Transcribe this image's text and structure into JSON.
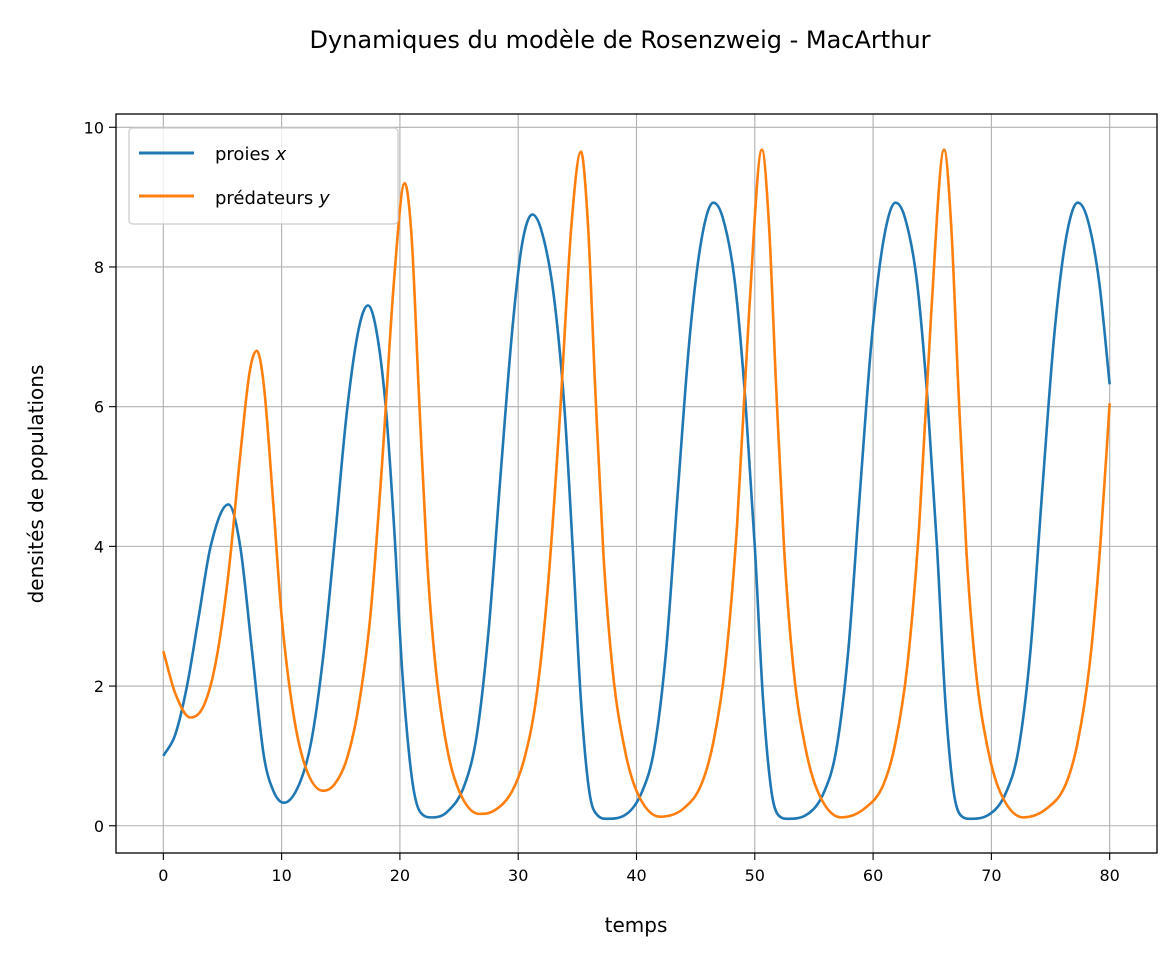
{
  "chart_data": {
    "type": "line",
    "title": "Dynamiques du modèle de Rosenzweig - MacArthur",
    "xlabel": "temps",
    "ylabel": "densités de populations",
    "xlim": [
      -4,
      84
    ],
    "ylim": [
      -0.39,
      10.19
    ],
    "xticks": [
      0,
      10,
      20,
      30,
      40,
      50,
      60,
      70,
      80
    ],
    "yticks": [
      0,
      2,
      4,
      6,
      8,
      10
    ],
    "grid": true,
    "legend_position": "top-left",
    "series": [
      {
        "name": "proies",
        "name_var": "x",
        "color": "#1f77b4",
        "points": [
          [
            0,
            1.0
          ],
          [
            1,
            1.3
          ],
          [
            2,
            2.0
          ],
          [
            3,
            3.0
          ],
          [
            4,
            4.0
          ],
          [
            5.5,
            4.6
          ],
          [
            6.5,
            4.0
          ],
          [
            7.5,
            2.5
          ],
          [
            8.5,
            1.0
          ],
          [
            9.3,
            0.5
          ],
          [
            10.2,
            0.33
          ],
          [
            11.5,
            0.6
          ],
          [
            12.5,
            1.2
          ],
          [
            13.5,
            2.4
          ],
          [
            14.5,
            4.1
          ],
          [
            15.5,
            5.9
          ],
          [
            16.5,
            7.1
          ],
          [
            17.3,
            7.45
          ],
          [
            18,
            7.1
          ],
          [
            18.8,
            6.0
          ],
          [
            19.5,
            4.3
          ],
          [
            20.2,
            2.2
          ],
          [
            21,
            0.7
          ],
          [
            21.7,
            0.2
          ],
          [
            22.7,
            0.12
          ],
          [
            24,
            0.2
          ],
          [
            25.5,
            0.6
          ],
          [
            26.5,
            1.3
          ],
          [
            27.5,
            2.8
          ],
          [
            28.5,
            5.0
          ],
          [
            29.5,
            7.1
          ],
          [
            30.3,
            8.3
          ],
          [
            31.2,
            8.75
          ],
          [
            32,
            8.5
          ],
          [
            33,
            7.6
          ],
          [
            33.9,
            6.0
          ],
          [
            34.6,
            4.0
          ],
          [
            35.3,
            1.8
          ],
          [
            36,
            0.5
          ],
          [
            36.7,
            0.15
          ],
          [
            37.5,
            0.1
          ],
          [
            39,
            0.15
          ],
          [
            40.5,
            0.5
          ],
          [
            41.5,
            1.1
          ],
          [
            42.5,
            2.5
          ],
          [
            43.5,
            4.8
          ],
          [
            44.5,
            7.0
          ],
          [
            45.5,
            8.4
          ],
          [
            46.5,
            8.92
          ],
          [
            47.3,
            8.7
          ],
          [
            48.3,
            7.8
          ],
          [
            49.2,
            6.1
          ],
          [
            50,
            4.0
          ],
          [
            50.7,
            1.8
          ],
          [
            51.4,
            0.5
          ],
          [
            52,
            0.15
          ],
          [
            52.8,
            0.1
          ],
          [
            54.3,
            0.15
          ],
          [
            55.9,
            0.5
          ],
          [
            56.9,
            1.1
          ],
          [
            57.9,
            2.5
          ],
          [
            58.9,
            4.8
          ],
          [
            59.9,
            7.0
          ],
          [
            60.9,
            8.4
          ],
          [
            61.9,
            8.92
          ],
          [
            62.7,
            8.7
          ],
          [
            63.7,
            7.8
          ],
          [
            64.6,
            6.1
          ],
          [
            65.4,
            4.0
          ],
          [
            66.1,
            1.8
          ],
          [
            66.8,
            0.5
          ],
          [
            67.4,
            0.15
          ],
          [
            68.2,
            0.1
          ],
          [
            69.7,
            0.15
          ],
          [
            71.3,
            0.5
          ],
          [
            72.3,
            1.1
          ],
          [
            73.3,
            2.5
          ],
          [
            74.3,
            4.8
          ],
          [
            75.3,
            7.0
          ],
          [
            76.3,
            8.4
          ],
          [
            77.3,
            8.92
          ],
          [
            78.1,
            8.7
          ],
          [
            79.1,
            7.8
          ],
          [
            80,
            6.32
          ]
        ]
      },
      {
        "name": "prédateurs",
        "name_var": "y",
        "color": "#ff7f0e",
        "points": [
          [
            0,
            2.5
          ],
          [
            1,
            1.9
          ],
          [
            2.3,
            1.55
          ],
          [
            3.5,
            1.75
          ],
          [
            4.5,
            2.4
          ],
          [
            5.5,
            3.6
          ],
          [
            6.5,
            5.3
          ],
          [
            7.3,
            6.5
          ],
          [
            7.9,
            6.8
          ],
          [
            8.5,
            6.3
          ],
          [
            9.3,
            4.6
          ],
          [
            10,
            3.0
          ],
          [
            11,
            1.6
          ],
          [
            12,
            0.85
          ],
          [
            13.5,
            0.5
          ],
          [
            14.5,
            0.6
          ],
          [
            15.5,
            0.95
          ],
          [
            16.5,
            1.7
          ],
          [
            17.5,
            3.0
          ],
          [
            18.5,
            5.2
          ],
          [
            19.5,
            7.8
          ],
          [
            20.4,
            9.2
          ],
          [
            21,
            8.4
          ],
          [
            21.6,
            6.2
          ],
          [
            22.3,
            3.8
          ],
          [
            23,
            2.3
          ],
          [
            24,
            1.1
          ],
          [
            25,
            0.5
          ],
          [
            26.7,
            0.17
          ],
          [
            28,
            0.22
          ],
          [
            29.5,
            0.5
          ],
          [
            30.5,
            0.95
          ],
          [
            31.5,
            1.8
          ],
          [
            32.5,
            3.4
          ],
          [
            33.5,
            5.8
          ],
          [
            34.5,
            8.6
          ],
          [
            35.3,
            9.65
          ],
          [
            35.9,
            8.6
          ],
          [
            36.5,
            6.3
          ],
          [
            37.2,
            3.9
          ],
          [
            38,
            2.2
          ],
          [
            39,
            1.1
          ],
          [
            40,
            0.5
          ],
          [
            42,
            0.13
          ],
          [
            44,
            0.25
          ],
          [
            45.5,
            0.6
          ],
          [
            46.5,
            1.2
          ],
          [
            47.5,
            2.3
          ],
          [
            48.5,
            4.3
          ],
          [
            49.5,
            7.3
          ],
          [
            50.6,
            9.68
          ],
          [
            51.2,
            8.6
          ],
          [
            51.8,
            6.3
          ],
          [
            52.5,
            3.9
          ],
          [
            53.3,
            2.2
          ],
          [
            54.3,
            1.1
          ],
          [
            55.3,
            0.5
          ],
          [
            57.3,
            0.12
          ],
          [
            59.3,
            0.25
          ],
          [
            60.9,
            0.6
          ],
          [
            61.9,
            1.2
          ],
          [
            62.9,
            2.3
          ],
          [
            63.9,
            4.3
          ],
          [
            64.9,
            7.3
          ],
          [
            66,
            9.68
          ],
          [
            66.6,
            8.6
          ],
          [
            67.2,
            6.3
          ],
          [
            67.9,
            3.9
          ],
          [
            68.7,
            2.2
          ],
          [
            69.7,
            1.1
          ],
          [
            70.7,
            0.5
          ],
          [
            72.7,
            0.12
          ],
          [
            74.7,
            0.25
          ],
          [
            76.3,
            0.6
          ],
          [
            77.3,
            1.2
          ],
          [
            78.3,
            2.3
          ],
          [
            79.2,
            4.0
          ],
          [
            80,
            6.05
          ]
        ]
      }
    ]
  }
}
